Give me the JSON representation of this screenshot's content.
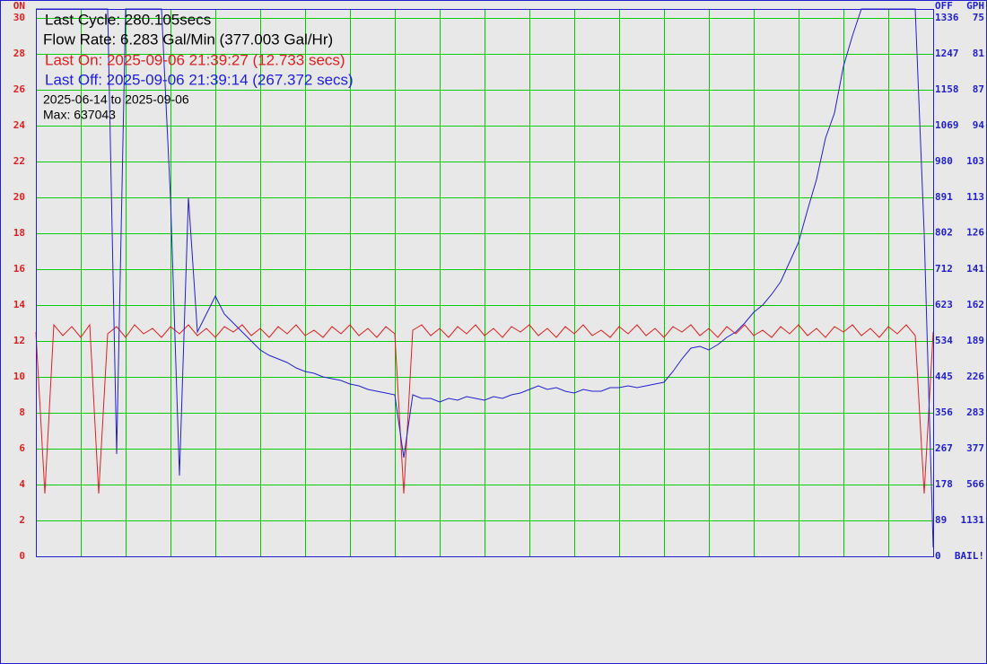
{
  "chart_data": {
    "type": "line",
    "ylabel": "ON",
    "y2label": "OFF",
    "gph_title": "GPH",
    "ylim": [
      0,
      30.5
    ],
    "yticks": [
      0,
      2,
      4,
      6,
      8,
      10,
      12,
      14,
      16,
      18,
      20,
      22,
      24,
      26,
      28,
      30
    ],
    "y2lim": [
      0,
      1358
    ],
    "y2ticks": [
      0,
      89,
      178,
      267,
      356,
      445,
      534,
      623,
      712,
      802,
      891,
      980,
      1069,
      1158,
      1247,
      1336
    ],
    "gph_labels": [
      "BAIL!",
      1131,
      566,
      377,
      283,
      226,
      189,
      162,
      141,
      126,
      113,
      103,
      94,
      87,
      81,
      75
    ],
    "grid": true,
    "grid_color": "#00cc00",
    "annotations": [
      {
        "text": "Last Cycle: 280.105secs",
        "color": "#000000"
      },
      {
        "text": "Flow Rate: 6.283 Gal/Min (377.003 Gal/Hr)",
        "color": "#000000"
      },
      {
        "text": "Last On: 2025-09-06 21:39:27 (12.733 secs)",
        "color": "#e02020"
      },
      {
        "text": "Last Off: 2025-09-06 21:39:14 (267.372 secs)",
        "color": "#2020e0"
      },
      {
        "text": "2025-06-14 to 2025-09-06",
        "color": "#000000"
      },
      {
        "text": "Max: 637043",
        "color": "#000000"
      }
    ],
    "series": [
      {
        "name": "ON",
        "color": "#e02020",
        "values": [
          12.5,
          3.5,
          12.9,
          12.3,
          12.8,
          12.2,
          12.9,
          3.5,
          12.4,
          12.8,
          12.2,
          12.9,
          12.4,
          12.7,
          12.2,
          12.8,
          12.4,
          12.9,
          12.3,
          12.7,
          12.2,
          12.8,
          12.5,
          12.9,
          12.3,
          12.7,
          12.2,
          12.8,
          12.4,
          12.9,
          12.3,
          12.6,
          12.2,
          12.8,
          12.4,
          12.9,
          12.3,
          12.7,
          12.2,
          12.8,
          12.4,
          3.5,
          12.6,
          12.9,
          12.3,
          12.7,
          12.2,
          12.8,
          12.4,
          12.9,
          12.3,
          12.7,
          12.2,
          12.8,
          12.5,
          12.9,
          12.3,
          12.7,
          12.2,
          12.8,
          12.4,
          12.9,
          12.3,
          12.6,
          12.2,
          12.8,
          12.4,
          12.9,
          12.3,
          12.7,
          12.2,
          12.8,
          12.5,
          12.9,
          12.3,
          12.7,
          12.2,
          12.8,
          12.4,
          12.9,
          12.3,
          12.6,
          12.2,
          12.8,
          12.4,
          12.9,
          12.3,
          12.7,
          12.2,
          12.8,
          12.5,
          12.9,
          12.3,
          12.7,
          12.2,
          12.8,
          12.4,
          12.9,
          12.3,
          3.5,
          12.5
        ]
      },
      {
        "name": "OFF",
        "color": "#2020d0",
        "values": [
          30.5,
          30.5,
          30.5,
          30.5,
          30.5,
          30.5,
          30.5,
          30.5,
          30.5,
          5.7,
          30.5,
          30.5,
          30.5,
          30.5,
          30.5,
          20,
          4.5,
          20,
          12.5,
          13.5,
          14.5,
          13.5,
          13,
          12.5,
          12,
          11.5,
          11.2,
          11,
          10.8,
          10.5,
          10.3,
          10.2,
          10,
          9.9,
          9.8,
          9.6,
          9.5,
          9.3,
          9.2,
          9.1,
          9,
          5.5,
          9,
          8.8,
          8.8,
          8.6,
          8.8,
          8.7,
          8.9,
          8.8,
          8.7,
          8.9,
          8.8,
          9,
          9.1,
          9.3,
          9.5,
          9.3,
          9.4,
          9.2,
          9.1,
          9.3,
          9.2,
          9.2,
          9.4,
          9.4,
          9.5,
          9.4,
          9.5,
          9.6,
          9.7,
          10.3,
          11,
          11.6,
          11.7,
          11.5,
          11.8,
          12.2,
          12.5,
          13,
          13.6,
          14,
          14.6,
          15.3,
          16.4,
          17.5,
          19.3,
          21,
          23.3,
          24.7,
          27.3,
          29,
          30.5,
          30.5,
          30.5,
          30.5,
          30.5,
          30.5,
          30.5,
          18,
          0.5
        ]
      }
    ]
  }
}
